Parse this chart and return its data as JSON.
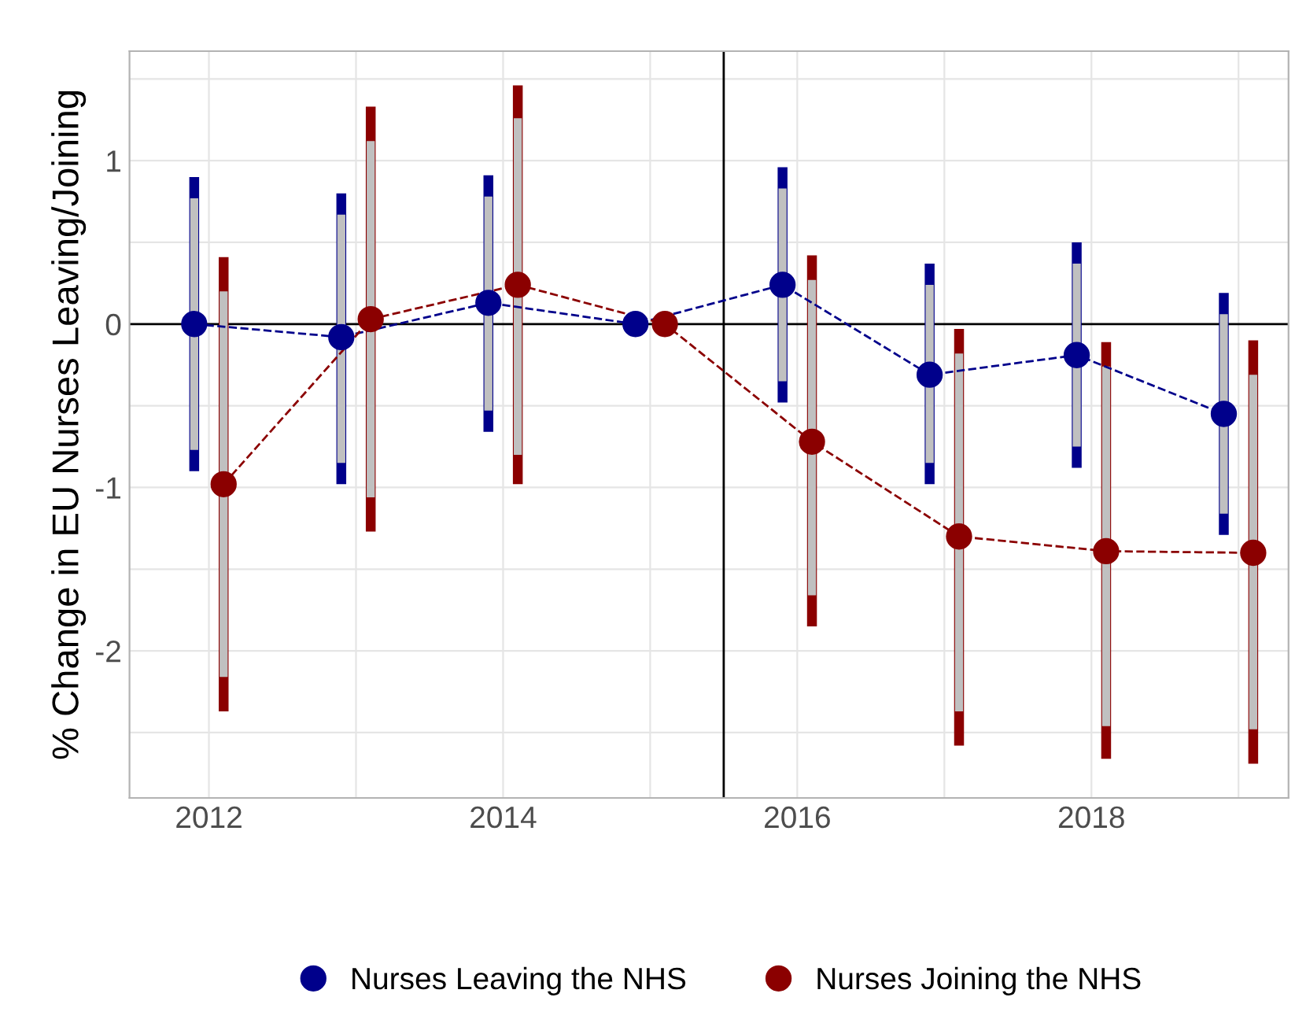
{
  "chart_data": {
    "type": "line",
    "ylabel": "% Change in EU Nurses Leaving/Joining",
    "xlim": [
      2011.46,
      2019.34
    ],
    "ylim": [
      -2.9,
      1.67
    ],
    "xticks": [
      2012,
      {
        "value": 2013,
        "label": null
      },
      2014,
      {
        "value": 2015,
        "label": null
      },
      2016,
      {
        "value": 2017,
        "label": null
      },
      2018,
      {
        "value": 2019,
        "label": null
      }
    ],
    "yticks": [
      {
        "value": -2.5,
        "label": null
      },
      -2,
      {
        "value": -1.5,
        "label": null
      },
      -1,
      {
        "value": -0.5,
        "label": null
      },
      0,
      {
        "value": 0.5,
        "label": null
      },
      1,
      {
        "value": 1.5,
        "label": null
      }
    ],
    "grid": true,
    "legend": "bottom",
    "marker": "circle",
    "line_style": "dashed",
    "ref_lines": [
      {
        "axis": "x",
        "value": 2015.5,
        "color": "#000000"
      },
      {
        "axis": "y",
        "value": 0,
        "color": "#000000"
      }
    ],
    "series": [
      {
        "name": "Nurses Leaving the NHS",
        "color": "#00008b",
        "x": [
          2011.9,
          2012.9,
          2013.9,
          2014.9,
          2015.9,
          2016.9,
          2017.9,
          2018.9
        ],
        "values": [
          0,
          -0.08,
          0.13,
          0,
          0.24,
          -0.31,
          -0.19,
          -0.55
        ],
        "errors": [
          [
            -0.9,
            0.9
          ],
          [
            -0.98,
            0.8
          ],
          [
            -0.66,
            0.91
          ],
          null,
          [
            -0.48,
            0.96
          ],
          [
            -0.98,
            0.37
          ],
          [
            -0.88,
            0.5
          ],
          [
            -1.29,
            0.19
          ]
        ]
      },
      {
        "name": "Nurses Joining the NHS",
        "color": "#8b0000",
        "x": [
          2012.1,
          2013.1,
          2014.1,
          2015.1,
          2016.1,
          2017.1,
          2018.1,
          2019.1
        ],
        "values": [
          -0.98,
          0.03,
          0.24,
          0,
          -0.72,
          -1.3,
          -1.39,
          -1.4
        ],
        "errors": [
          [
            -2.37,
            0.41
          ],
          [
            -1.27,
            1.33
          ],
          [
            -0.98,
            1.46
          ],
          null,
          [
            -1.85,
            0.42
          ],
          [
            -2.58,
            -0.03
          ],
          [
            -2.66,
            -0.11
          ],
          [
            -2.69,
            -0.1
          ]
        ]
      },
      {
        "type": "bar",
        "color": "#c0c0c0",
        "x": [
          2011.9,
          2012.9,
          2013.9,
          2014.9,
          2015.9,
          2016.9,
          2017.9,
          2018.9
        ],
        "base": [
          -0.77,
          -0.85,
          -0.53,
          null,
          -0.35,
          -0.85,
          -0.75,
          -1.16
        ],
        "values": [
          1.54,
          1.52,
          1.31,
          null,
          1.18,
          1.09,
          1.12,
          1.22
        ]
      },
      {
        "type": "bar",
        "color": "#c0c0c0",
        "x": [
          2012.1,
          2013.1,
          2014.1,
          2015.1,
          2016.1,
          2017.1,
          2018.1,
          2019.1
        ],
        "base": [
          -2.16,
          -1.06,
          -0.8,
          null,
          -1.66,
          -2.37,
          -2.46,
          -2.48
        ],
        "values": [
          2.36,
          2.18,
          2.06,
          null,
          1.93,
          2.19,
          2.2,
          2.17
        ]
      }
    ]
  }
}
